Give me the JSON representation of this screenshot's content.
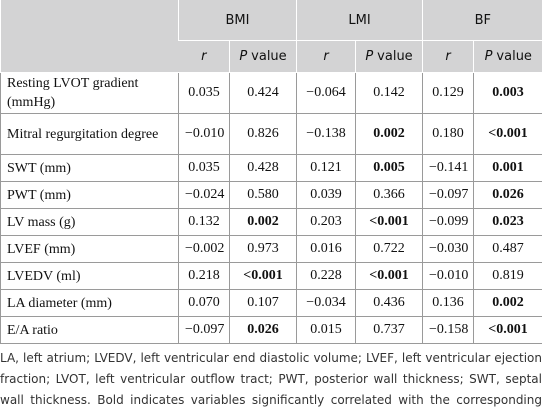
{
  "table": {
    "groups": [
      "BMI",
      "LMI",
      "BF"
    ],
    "subheaders": [
      {
        "symbol": "r"
      },
      {
        "symbol": "P",
        "text": "value"
      },
      {
        "symbol": "r"
      },
      {
        "symbol": "P",
        "text": "value"
      },
      {
        "symbol": "r"
      },
      {
        "symbol": "P",
        "text": "value"
      }
    ],
    "rows": [
      {
        "label": "Resting LVOT gradient (mmHg)",
        "values": [
          "0.035",
          "0.424",
          "−0.064",
          "0.142",
          "0.129",
          "0.003"
        ],
        "bold": [
          5
        ]
      },
      {
        "label": "Mitral regurgitation degree",
        "values": [
          "−0.010",
          "0.826",
          "−0.138",
          "0.002",
          "0.180",
          "<0.001"
        ],
        "bold": [
          3,
          5
        ]
      },
      {
        "label": "SWT (mm)",
        "values": [
          "0.035",
          "0.428",
          "0.121",
          "0.005",
          "−0.141",
          "0.001"
        ],
        "bold": [
          3,
          5
        ]
      },
      {
        "label": "PWT (mm)",
        "values": [
          "−0.024",
          "0.580",
          "0.039",
          "0.366",
          "−0.097",
          "0.026"
        ],
        "bold": [
          5
        ]
      },
      {
        "label": "LV mass (g)",
        "values": [
          "0.132",
          "0.002",
          "0.203",
          "<0.001",
          "−0.099",
          "0.023"
        ],
        "bold": [
          1,
          3,
          5
        ]
      },
      {
        "label": "LVEF (mm)",
        "values": [
          "−0.002",
          "0.973",
          "0.016",
          "0.722",
          "−0.030",
          "0.487"
        ],
        "bold": []
      },
      {
        "label": "LVEDV (ml)",
        "values": [
          "0.218",
          "<0.001",
          "0.228",
          "<0.001",
          "−0.010",
          "0.819"
        ],
        "bold": [
          1,
          3
        ]
      },
      {
        "label": "LA diameter (mm)",
        "values": [
          "0.070",
          "0.107",
          "−0.034",
          "0.436",
          "0.136",
          "0.002"
        ],
        "bold": [
          5
        ]
      },
      {
        "label": "E/A ratio",
        "values": [
          "−0.097",
          "0.026",
          "0.015",
          "0.737",
          "−0.158",
          "<0.001"
        ],
        "bold": [
          1,
          5
        ]
      }
    ],
    "footnote": "LA, left atrium; LVEDV, left ventricular end diastolic volume; LVEF, left ventricular ejection fraction; LVOT, left ventricular outflow tract; PWT, posterior wall thickness; SWT, septal wall thickness. Bold indicates variables significantly correlated with the corresponding body compositions."
  }
}
